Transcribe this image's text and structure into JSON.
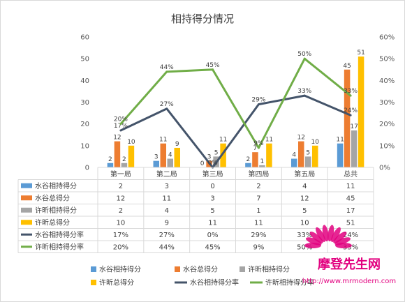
{
  "chart_data": {
    "type": "bar",
    "title": "相持得分情况",
    "categories": [
      "第一局",
      "第二局",
      "第三局",
      "第四局",
      "第五局",
      "总共"
    ],
    "y_left": {
      "ticks": [
        "0",
        "10",
        "20",
        "30",
        "40",
        "50",
        "60"
      ],
      "ylim": [
        0,
        60
      ]
    },
    "y_right": {
      "ticks": [
        "0%",
        "10%",
        "20%",
        "30%",
        "40%",
        "50%",
        "60%"
      ],
      "ylim": [
        0,
        60
      ]
    },
    "series": [
      {
        "name": "水谷相持得分",
        "kind": "bar",
        "color": "#5b9bd5",
        "values": [
          2,
          3,
          0,
          2,
          4,
          11
        ],
        "labels": [
          "2",
          "3",
          "0",
          "2",
          "4",
          "11"
        ]
      },
      {
        "name": "水谷总得分",
        "kind": "bar",
        "color": "#ed7d31",
        "values": [
          12,
          11,
          3,
          7,
          12,
          45
        ],
        "labels": [
          "12",
          "11",
          "3",
          "7",
          "12",
          "45"
        ]
      },
      {
        "name": "许昕相持得分",
        "kind": "bar",
        "color": "#a5a5a5",
        "values": [
          2,
          4,
          5,
          1,
          5,
          17
        ],
        "labels": [
          "2",
          "4",
          "5",
          "1",
          "5",
          "17"
        ]
      },
      {
        "name": "许昕总得分",
        "kind": "bar",
        "color": "#ffc000",
        "values": [
          10,
          9,
          11,
          11,
          10,
          51
        ],
        "labels": [
          "10",
          "9",
          "11",
          "11",
          "10",
          "51"
        ]
      },
      {
        "name": "水谷相持得分率",
        "kind": "line",
        "axis": "right",
        "color": "#44546a",
        "values": [
          17,
          27,
          0,
          29,
          33,
          24
        ],
        "labels": [
          "17%",
          "27%",
          "0%",
          "29%",
          "33%",
          "24%"
        ]
      },
      {
        "name": "许昕相持得分率",
        "kind": "line",
        "axis": "right",
        "color": "#70ad47",
        "values": [
          20,
          44,
          45,
          9,
          50,
          33
        ],
        "labels": [
          "20%",
          "44%",
          "45%",
          "9%",
          "50%",
          "33%"
        ]
      }
    ],
    "grid": false,
    "legend_position": "bottom",
    "data_table": true
  },
  "watermark": {
    "text": "摩登先生网",
    "url": "http://www.mrmodern.com"
  }
}
